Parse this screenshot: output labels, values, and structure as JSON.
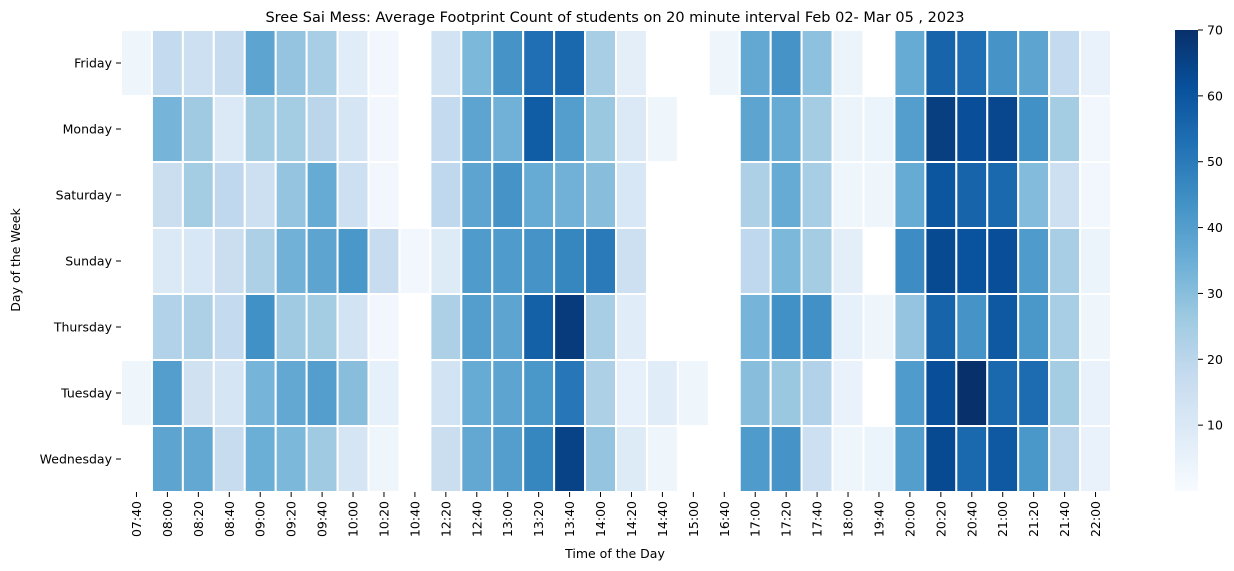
{
  "chart_data": {
    "type": "heatmap",
    "title": "Sree Sai Mess: Average Footprint Count of students on 20 minute interval Feb 02- Mar 05 , 2023",
    "xlabel": "Time of the Day",
    "ylabel": "Day of the Week",
    "x": [
      "07:40",
      "08:00",
      "08:20",
      "08:40",
      "09:00",
      "09:20",
      "09:40",
      "10:00",
      "10:20",
      "10:40",
      "12:20",
      "12:40",
      "13:00",
      "13:20",
      "13:40",
      "14:00",
      "14:20",
      "14:40",
      "15:00",
      "16:40",
      "17:00",
      "17:20",
      "17:40",
      "18:00",
      "19:40",
      "20:00",
      "20:20",
      "20:40",
      "21:00",
      "21:20",
      "21:40",
      "22:00"
    ],
    "y": [
      "Friday",
      "Monday",
      "Saturday",
      "Sunday",
      "Thursday",
      "Tuesday",
      "Wednesday"
    ],
    "values": [
      [
        3,
        18,
        15,
        17,
        38,
        28,
        24,
        8,
        2,
        null,
        13,
        32,
        43,
        53,
        55,
        24,
        7,
        null,
        null,
        3,
        37,
        43,
        29,
        4,
        null,
        36,
        56,
        53,
        43,
        38,
        18,
        5
      ],
      [
        null,
        33,
        26,
        10,
        25,
        25,
        20,
        12,
        2,
        null,
        18,
        38,
        34,
        58,
        40,
        27,
        10,
        3,
        null,
        null,
        38,
        36,
        25,
        4,
        4,
        40,
        66,
        62,
        64,
        44,
        25,
        2
      ],
      [
        null,
        16,
        25,
        19,
        15,
        28,
        36,
        15,
        2,
        null,
        19,
        38,
        43,
        36,
        34,
        30,
        11,
        null,
        null,
        null,
        23,
        36,
        24,
        3,
        3,
        36,
        60,
        56,
        55,
        31,
        15,
        2
      ],
      [
        null,
        10,
        11,
        16,
        23,
        34,
        38,
        42,
        17,
        2,
        9,
        41,
        41,
        43,
        47,
        50,
        15,
        null,
        null,
        null,
        19,
        32,
        25,
        7,
        null,
        45,
        63,
        61,
        62,
        41,
        24,
        4
      ],
      [
        null,
        22,
        23,
        18,
        44,
        26,
        25,
        13,
        2,
        null,
        23,
        40,
        38,
        57,
        67,
        24,
        8,
        null,
        null,
        null,
        33,
        44,
        44,
        6,
        3,
        28,
        56,
        43,
        59,
        42,
        24,
        3
      ],
      [
        3,
        40,
        14,
        12,
        33,
        37,
        40,
        30,
        6,
        null,
        13,
        36,
        38,
        42,
        51,
        23,
        6,
        8,
        3,
        null,
        30,
        27,
        22,
        5,
        null,
        41,
        62,
        71,
        55,
        54,
        25,
        5
      ],
      [
        null,
        38,
        37,
        17,
        35,
        32,
        26,
        12,
        3,
        null,
        16,
        37,
        40,
        47,
        65,
        28,
        9,
        3,
        null,
        null,
        41,
        43,
        15,
        3,
        4,
        40,
        63,
        55,
        59,
        42,
        20,
        5
      ]
    ],
    "colorbar": {
      "min": 0,
      "max": 70,
      "ticks": [
        10,
        20,
        30,
        40,
        50,
        60,
        70
      ],
      "colormap": "Blues"
    },
    "grid": false,
    "legend": "colorbar-right"
  }
}
